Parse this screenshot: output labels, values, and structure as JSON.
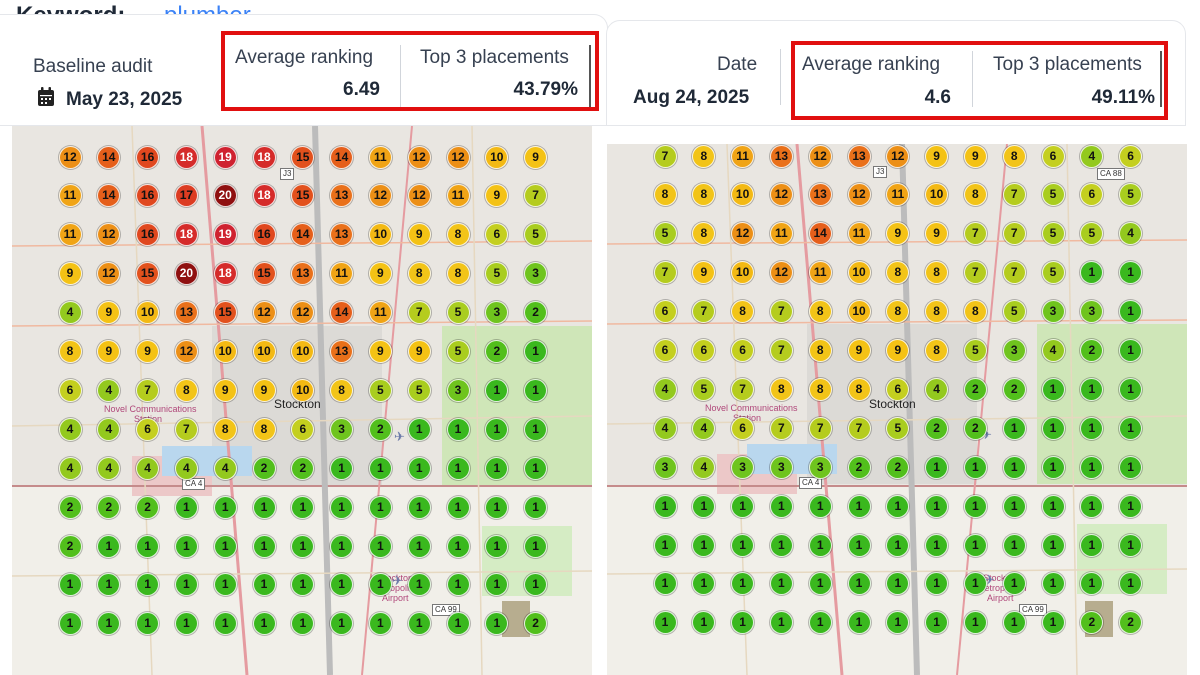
{
  "keyword": {
    "label": "Keyword:",
    "value": "plumber"
  },
  "left": {
    "meta_label": "Baseline audit",
    "date": "May 23, 2025",
    "avg_label": "Average ranking",
    "avg_value": "6.49",
    "top3_label": "Top 3 placements",
    "top3_value": "43.79%"
  },
  "right": {
    "meta_label": "Date",
    "date": "Aug 24, 2025",
    "avg_label": "Average ranking",
    "avg_value": "4.6",
    "top3_label": "Top 3 placements",
    "top3_value": "49.11%"
  },
  "map_labels": {
    "city": "Stockton",
    "place_line1": "Novel Communications",
    "place_line2": "Station",
    "airport_line1": "Stockton",
    "airport_line2": "Metropolitan",
    "airport_line3": "Airport",
    "ca4": "CA 4",
    "ca99": "CA 99",
    "ca88": "CA 88",
    "j3": "J3"
  },
  "colors": {
    "highlight": "#e10f0f",
    "keyword": "#3b82f6",
    "rank_colors": {
      "1": "#3ab81e",
      "2": "#52bf1c",
      "3": "#6fc41e",
      "4": "#93c91e",
      "5": "#a9cd1f",
      "6": "#c4cf1f",
      "7": "#b5cc1e",
      "8": "#f2c418",
      "9": "#f4c215",
      "10": "#f3b914",
      "11": "#f0a416",
      "12": "#ec8f16",
      "13": "#e9701a",
      "14": "#e55f1b",
      "15": "#e2511d",
      "16": "#e0481f",
      "17": "#dc3c22",
      "18": "#d52b2a",
      "19": "#cf2230",
      "20": "#8f1010"
    }
  },
  "grid_left": [
    [
      12,
      14,
      16,
      18,
      19,
      18,
      15,
      14,
      11,
      12,
      12,
      10,
      9
    ],
    [
      11,
      14,
      16,
      17,
      20,
      18,
      15,
      13,
      12,
      12,
      11,
      9,
      7
    ],
    [
      11,
      12,
      16,
      18,
      19,
      16,
      14,
      13,
      10,
      9,
      8,
      6,
      5
    ],
    [
      9,
      12,
      15,
      20,
      18,
      15,
      13,
      11,
      9,
      8,
      8,
      5,
      3
    ],
    [
      4,
      9,
      10,
      13,
      15,
      12,
      12,
      14,
      11,
      7,
      5,
      3,
      2
    ],
    [
      8,
      9,
      9,
      12,
      10,
      10,
      10,
      13,
      9,
      9,
      5,
      2,
      1
    ],
    [
      6,
      4,
      7,
      8,
      9,
      9,
      10,
      8,
      5,
      5,
      3,
      1,
      1
    ],
    [
      4,
      4,
      6,
      7,
      8,
      8,
      6,
      3,
      2,
      1,
      1,
      1,
      1
    ],
    [
      4,
      4,
      4,
      4,
      4,
      2,
      2,
      1,
      1,
      1,
      1,
      1,
      1
    ],
    [
      2,
      2,
      2,
      1,
      1,
      1,
      1,
      1,
      1,
      1,
      1,
      1,
      1
    ],
    [
      2,
      1,
      1,
      1,
      1,
      1,
      1,
      1,
      1,
      1,
      1,
      1,
      1
    ],
    [
      1,
      1,
      1,
      1,
      1,
      1,
      1,
      1,
      1,
      1,
      1,
      1,
      1
    ],
    [
      1,
      1,
      1,
      1,
      1,
      1,
      1,
      1,
      1,
      1,
      1,
      1,
      2
    ]
  ],
  "grid_right": [
    [
      7,
      8,
      11,
      13,
      12,
      13,
      12,
      9,
      9,
      8,
      6,
      4,
      6
    ],
    [
      8,
      8,
      10,
      12,
      13,
      12,
      11,
      10,
      8,
      7,
      5,
      6,
      5
    ],
    [
      5,
      8,
      12,
      11,
      14,
      11,
      9,
      9,
      7,
      7,
      5,
      5,
      4
    ],
    [
      7,
      9,
      10,
      12,
      11,
      10,
      8,
      8,
      7,
      7,
      5,
      1,
      1
    ],
    [
      6,
      7,
      8,
      7,
      8,
      10,
      8,
      8,
      8,
      5,
      3,
      3,
      1
    ],
    [
      6,
      6,
      6,
      7,
      8,
      9,
      9,
      8,
      5,
      3,
      4,
      2,
      1
    ],
    [
      4,
      5,
      7,
      8,
      8,
      8,
      6,
      4,
      2,
      2,
      1,
      1,
      1
    ],
    [
      4,
      4,
      6,
      7,
      7,
      7,
      5,
      2,
      2,
      1,
      1,
      1,
      1
    ],
    [
      3,
      4,
      3,
      3,
      3,
      2,
      2,
      1,
      1,
      1,
      1,
      1,
      1
    ],
    [
      1,
      1,
      1,
      1,
      1,
      1,
      1,
      1,
      1,
      1,
      1,
      1,
      1
    ],
    [
      1,
      1,
      1,
      1,
      1,
      1,
      1,
      1,
      1,
      1,
      1,
      1,
      1
    ],
    [
      1,
      1,
      1,
      1,
      1,
      1,
      1,
      1,
      1,
      1,
      1,
      1,
      1
    ],
    [
      1,
      1,
      1,
      1,
      1,
      1,
      1,
      1,
      1,
      1,
      1,
      2,
      2
    ]
  ]
}
